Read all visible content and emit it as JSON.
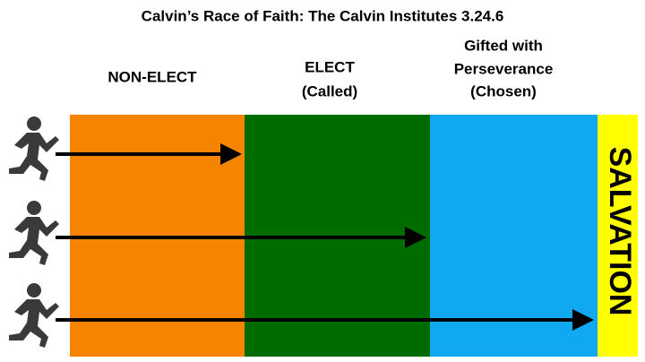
{
  "header": {
    "title": "Calvin’s Race of Faith: The Calvin Institutes  3.24.6"
  },
  "zones": [
    {
      "label_lines": [
        "NON-ELECT"
      ]
    },
    {
      "label_lines": [
        "ELECT",
        "(Called)"
      ]
    },
    {
      "label_lines": [
        "Gifted with",
        "Perseverance",
        "(Chosen)"
      ]
    }
  ],
  "goal": {
    "label": "SALVATION"
  }
}
